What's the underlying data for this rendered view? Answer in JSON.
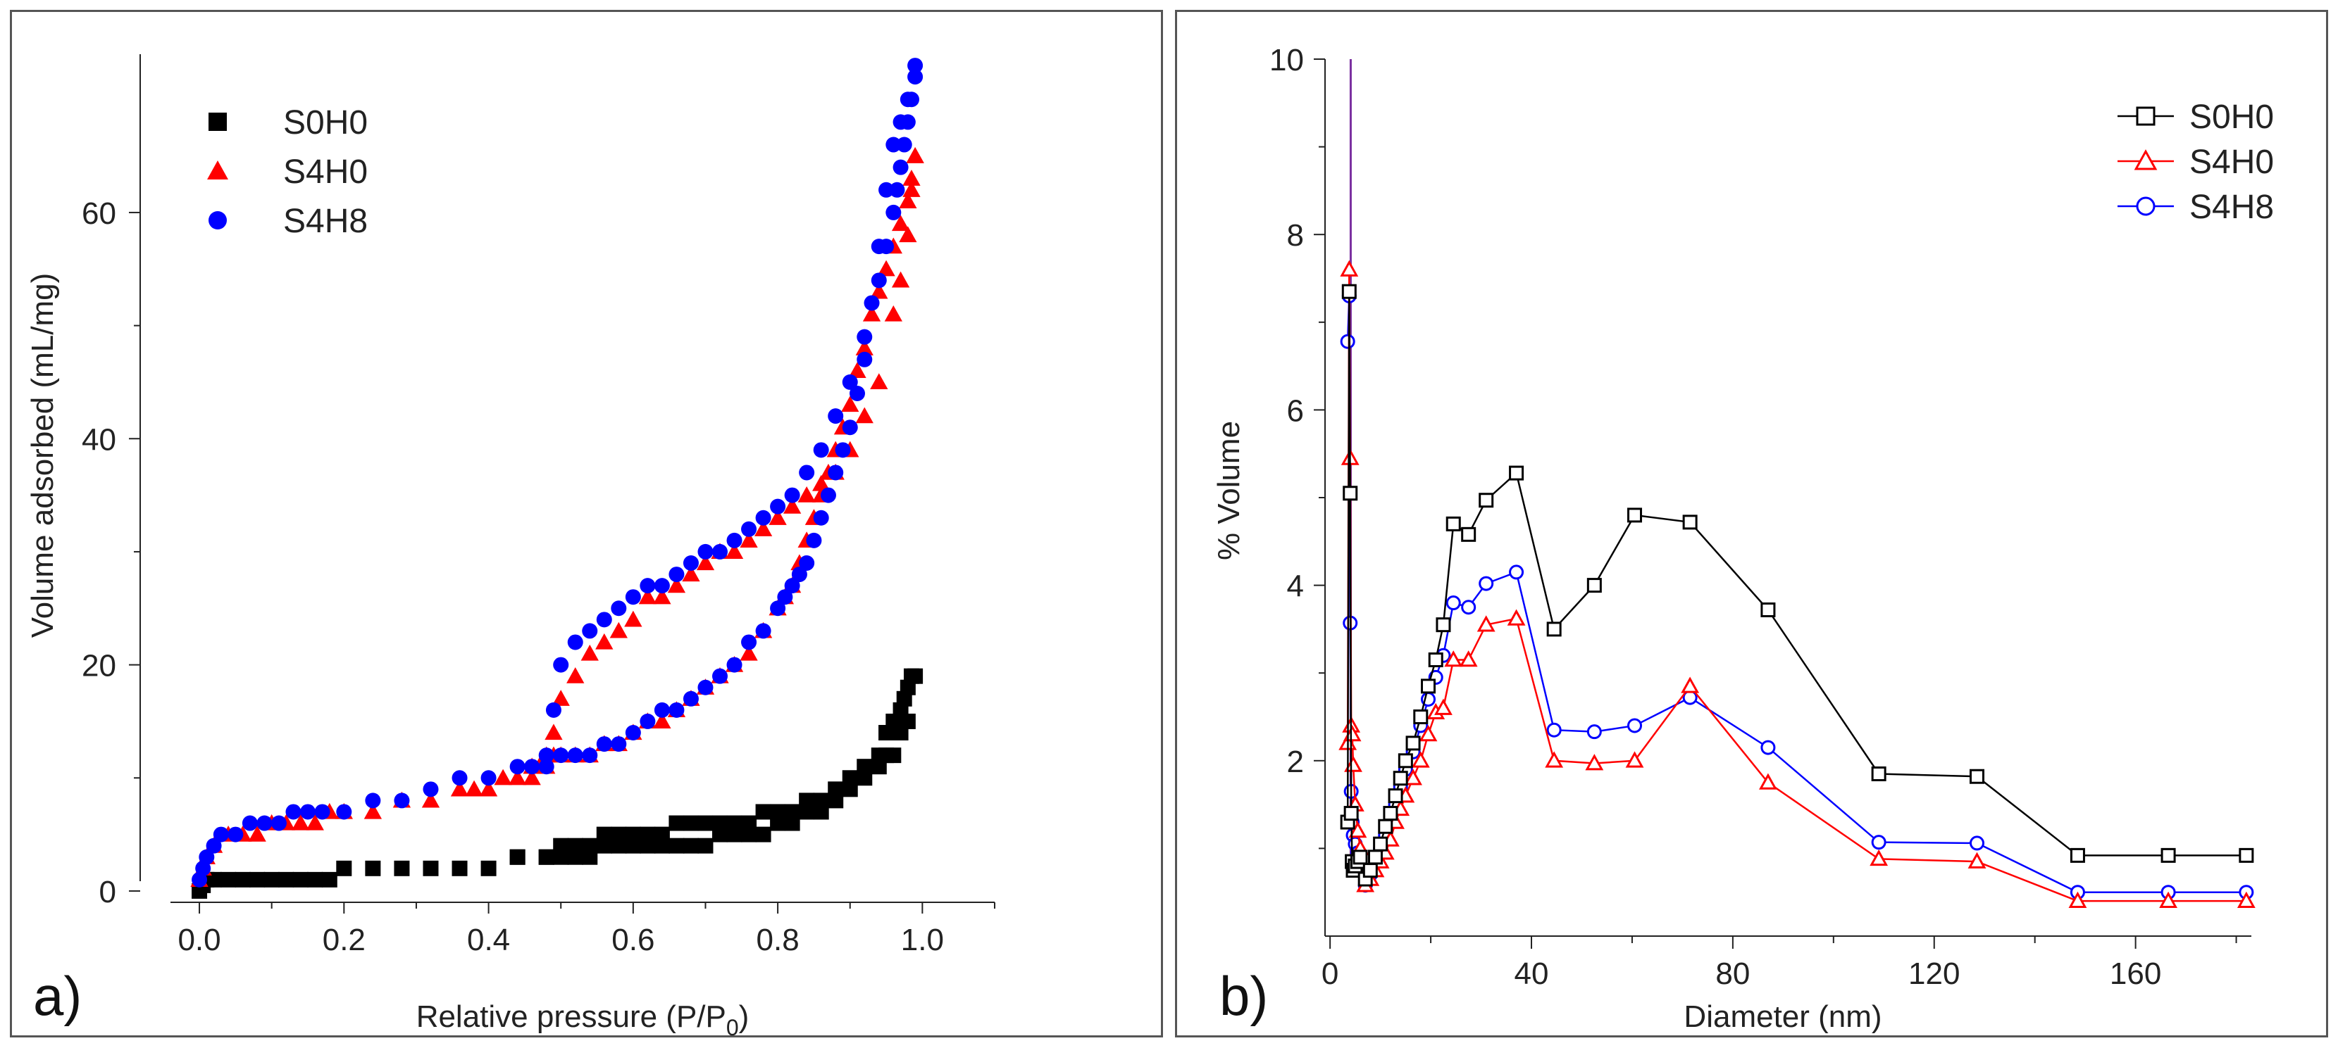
{
  "chart_data": [
    {
      "panel_label": "a)",
      "type": "scatter",
      "xlabel": "Relative pressure (P/P",
      "xlabel_sub": "0",
      "xlabel_end": ")",
      "ylabel": "Volume adsorbed (mL/mg)",
      "xlim": [
        -0.04,
        1.1
      ],
      "ylim": [
        -1,
        74
      ],
      "xticks": [
        0.0,
        0.2,
        0.4,
        0.6,
        0.8,
        1.0
      ],
      "xtick_labels": [
        "0.0",
        "0.2",
        "0.4",
        "0.6",
        "0.8",
        "1.0"
      ],
      "yticks": [
        0,
        20,
        40,
        60
      ],
      "ytick_labels": [
        "0",
        "20",
        "40",
        "60"
      ],
      "legend": [
        "S0H0",
        "S4H0",
        "S4H8"
      ],
      "series": [
        {
          "name": "S0H0",
          "marker": "square",
          "color": "#000000",
          "x": [
            0.0,
            0.005,
            0.01,
            0.02,
            0.04,
            0.06,
            0.08,
            0.1,
            0.12,
            0.14,
            0.16,
            0.18,
            0.2,
            0.24,
            0.28,
            0.32,
            0.36,
            0.4,
            0.44,
            0.48,
            0.5,
            0.52,
            0.54,
            0.56,
            0.58,
            0.6,
            0.62,
            0.64,
            0.66,
            0.68,
            0.7,
            0.72,
            0.74,
            0.76,
            0.78,
            0.8,
            0.82,
            0.84,
            0.86,
            0.88,
            0.9,
            0.92,
            0.94,
            0.95,
            0.96,
            0.97,
            0.975,
            0.98,
            0.985,
            0.99,
            0.98,
            0.97,
            0.96,
            0.95,
            0.94,
            0.92,
            0.9,
            0.88,
            0.86,
            0.84,
            0.82,
            0.8,
            0.78,
            0.76,
            0.74,
            0.72,
            0.7,
            0.68,
            0.66,
            0.64,
            0.62,
            0.6,
            0.58,
            0.56,
            0.54,
            0.52,
            0.5,
            0.48,
            0.44
          ],
          "y": [
            0,
            0.5,
            1,
            1,
            1,
            1,
            1,
            1,
            1,
            1,
            1,
            1,
            2,
            2,
            2,
            2,
            2,
            2,
            3,
            3,
            4,
            4,
            4,
            5,
            5,
            5,
            5,
            5,
            6,
            6,
            6,
            6,
            6,
            6,
            7,
            7,
            7,
            8,
            8,
            9,
            10,
            11,
            12,
            14,
            15,
            16,
            17,
            18,
            19,
            19,
            15,
            14,
            12,
            12,
            11,
            10,
            9,
            8,
            7,
            7,
            6,
            6,
            5,
            5,
            5,
            5,
            4,
            4,
            4,
            4,
            4,
            4,
            4,
            4,
            3,
            3,
            3,
            3,
            3
          ]
        },
        {
          "name": "S4H0",
          "marker": "triangle",
          "color": "#ff0000",
          "x": [
            0.0,
            0.005,
            0.01,
            0.02,
            0.04,
            0.06,
            0.08,
            0.1,
            0.12,
            0.14,
            0.16,
            0.18,
            0.2,
            0.24,
            0.28,
            0.32,
            0.36,
            0.38,
            0.4,
            0.42,
            0.44,
            0.46,
            0.48,
            0.49,
            0.5,
            0.52,
            0.54,
            0.56,
            0.58,
            0.6,
            0.62,
            0.64,
            0.66,
            0.68,
            0.7,
            0.72,
            0.74,
            0.76,
            0.78,
            0.8,
            0.82,
            0.84,
            0.86,
            0.88,
            0.9,
            0.92,
            0.94,
            0.96,
            0.97,
            0.98,
            0.985,
            0.99,
            0.99,
            0.985,
            0.98,
            0.97,
            0.96,
            0.95,
            0.94,
            0.93,
            0.92,
            0.91,
            0.9,
            0.89,
            0.88,
            0.87,
            0.86,
            0.85,
            0.84,
            0.83,
            0.82,
            0.81,
            0.8,
            0.78,
            0.76,
            0.74,
            0.72,
            0.7,
            0.68,
            0.66,
            0.64,
            0.62,
            0.6,
            0.58,
            0.56,
            0.54,
            0.52,
            0.5,
            0.49,
            0.48,
            0.47,
            0.46
          ],
          "y": [
            1,
            2,
            3,
            4,
            5,
            5,
            5,
            6,
            6,
            6,
            6,
            7,
            7,
            7,
            8,
            8,
            9,
            9,
            9,
            10,
            10,
            11,
            12,
            14,
            17,
            19,
            21,
            22,
            23,
            24,
            26,
            26,
            27,
            28,
            29,
            30,
            30,
            31,
            32,
            33,
            34,
            35,
            36,
            37,
            39,
            42,
            45,
            51,
            54,
            58,
            62,
            65,
            65,
            63,
            61,
            59,
            57,
            55,
            53,
            51,
            48,
            46,
            43,
            41,
            39,
            37,
            35,
            33,
            31,
            29,
            27,
            26,
            25,
            23,
            21,
            20,
            19,
            18,
            17,
            16,
            15,
            15,
            14,
            13,
            13,
            12,
            12,
            12,
            12,
            11,
            11,
            10
          ]
        },
        {
          "name": "S4H8",
          "marker": "circle",
          "color": "#0000ff",
          "x": [
            0.0,
            0.005,
            0.01,
            0.02,
            0.03,
            0.05,
            0.07,
            0.09,
            0.11,
            0.13,
            0.15,
            0.17,
            0.2,
            0.24,
            0.28,
            0.32,
            0.36,
            0.4,
            0.44,
            0.46,
            0.48,
            0.49,
            0.5,
            0.52,
            0.54,
            0.56,
            0.58,
            0.6,
            0.62,
            0.64,
            0.66,
            0.68,
            0.7,
            0.72,
            0.74,
            0.76,
            0.78,
            0.8,
            0.82,
            0.84,
            0.86,
            0.88,
            0.9,
            0.92,
            0.94,
            0.95,
            0.96,
            0.965,
            0.97,
            0.975,
            0.98,
            0.985,
            0.99,
            0.99,
            0.98,
            0.97,
            0.96,
            0.95,
            0.94,
            0.93,
            0.92,
            0.91,
            0.9,
            0.89,
            0.88,
            0.87,
            0.86,
            0.85,
            0.84,
            0.83,
            0.82,
            0.81,
            0.8,
            0.78,
            0.76,
            0.74,
            0.72,
            0.7,
            0.68,
            0.66,
            0.64,
            0.62,
            0.6,
            0.58,
            0.56,
            0.54,
            0.52,
            0.5,
            0.48
          ],
          "y": [
            1,
            2,
            3,
            4,
            5,
            5,
            6,
            6,
            6,
            7,
            7,
            7,
            7,
            8,
            8,
            9,
            10,
            10,
            11,
            11,
            12,
            16,
            20,
            22,
            23,
            24,
            25,
            26,
            27,
            27,
            28,
            29,
            30,
            30,
            31,
            32,
            33,
            34,
            35,
            37,
            39,
            42,
            45,
            49,
            54,
            57,
            60,
            62,
            64,
            66,
            68,
            70,
            73,
            72,
            70,
            68,
            66,
            62,
            57,
            52,
            47,
            44,
            41,
            39,
            37,
            35,
            33,
            31,
            29,
            28,
            27,
            26,
            25,
            23,
            22,
            20,
            19,
            18,
            17,
            16,
            16,
            15,
            14,
            13,
            13,
            12,
            12,
            12,
            11
          ]
        }
      ]
    },
    {
      "panel_label": "b)",
      "type": "line",
      "xlabel": "Diameter (nm)",
      "ylabel": "% Volume",
      "xlim": [
        -1,
        183
      ],
      "ylim": [
        0,
        10
      ],
      "xticks": [
        0,
        40,
        80,
        120,
        160
      ],
      "xtick_labels": [
        "0",
        "40",
        "80",
        "120",
        "160"
      ],
      "yticks": [
        2,
        4,
        6,
        8,
        10
      ],
      "ytick_labels": [
        "2",
        "4",
        "6",
        "8",
        "10"
      ],
      "legend": [
        "S0H0",
        "S4H0",
        "S4H8"
      ],
      "spike": {
        "x": 4.1,
        "y": 10,
        "color": "#7a2fa0"
      },
      "series": [
        {
          "name": "S0H0",
          "marker": "square",
          "color": "#000000",
          "x": [
            3.5,
            3.8,
            4.0,
            4.2,
            4.4,
            4.6,
            5.0,
            5.5,
            6.0,
            7.0,
            8.0,
            9.0,
            10.0,
            11.0,
            12.0,
            13.0,
            14.0,
            15.0,
            16.5,
            18.0,
            19.5,
            21.0,
            22.5,
            24.5,
            27.5,
            31.0,
            37.0,
            44.5,
            52.5,
            60.5,
            71.5,
            87.0,
            109.0,
            128.5,
            148.5,
            166.5,
            182.0
          ],
          "y": [
            1.3,
            7.35,
            5.05,
            1.4,
            0.85,
            0.75,
            0.8,
            0.85,
            0.9,
            0.65,
            0.75,
            0.9,
            1.05,
            1.25,
            1.4,
            1.6,
            1.8,
            2.0,
            2.2,
            2.5,
            2.85,
            3.15,
            3.55,
            4.7,
            4.58,
            4.97,
            5.28,
            3.5,
            4.0,
            4.8,
            4.72,
            3.72,
            1.85,
            1.82,
            0.92,
            0.92,
            0.92
          ]
        },
        {
          "name": "S4H0",
          "marker": "triangle",
          "color": "#ff0000",
          "x": [
            3.5,
            3.8,
            4.0,
            4.2,
            4.4,
            4.6,
            5.0,
            5.5,
            6.0,
            7.0,
            8.0,
            9.0,
            10.0,
            11.0,
            12.0,
            13.0,
            14.0,
            15.0,
            16.5,
            18.0,
            19.5,
            21.0,
            22.5,
            24.5,
            27.5,
            31.0,
            37.0,
            44.5,
            52.5,
            60.5,
            71.5,
            87.0,
            109.0,
            128.5,
            148.5,
            166.5,
            182.0
          ],
          "y": [
            2.2,
            7.6,
            5.45,
            2.4,
            2.3,
            1.95,
            1.5,
            1.2,
            1.0,
            0.58,
            0.65,
            0.75,
            0.85,
            0.95,
            1.1,
            1.3,
            1.45,
            1.6,
            1.8,
            2.0,
            2.3,
            2.55,
            2.6,
            3.15,
            3.15,
            3.55,
            3.62,
            2.0,
            1.97,
            2.0,
            2.85,
            1.75,
            0.88,
            0.85,
            0.4,
            0.4,
            0.4
          ]
        },
        {
          "name": "S4H8",
          "marker": "circle",
          "color": "#0000ff",
          "x": [
            3.5,
            3.8,
            4.0,
            4.2,
            4.4,
            4.6,
            5.0,
            5.5,
            6.0,
            7.0,
            8.0,
            9.0,
            10.0,
            11.0,
            12.0,
            13.0,
            14.0,
            15.0,
            16.5,
            18.0,
            19.5,
            21.0,
            22.5,
            24.5,
            27.5,
            31.0,
            37.0,
            44.5,
            52.5,
            60.5,
            71.5,
            87.0,
            109.0,
            128.5,
            148.5,
            166.5,
            182.0
          ],
          "y": [
            6.78,
            7.3,
            3.57,
            1.65,
            1.3,
            1.15,
            1.05,
            0.95,
            0.85,
            0.58,
            0.7,
            0.85,
            1.0,
            1.15,
            1.3,
            1.5,
            1.7,
            1.9,
            2.1,
            2.4,
            2.7,
            2.95,
            3.2,
            3.8,
            3.75,
            4.02,
            4.15,
            2.35,
            2.33,
            2.4,
            2.72,
            2.15,
            1.07,
            1.06,
            0.5,
            0.5,
            0.5
          ]
        }
      ]
    }
  ]
}
